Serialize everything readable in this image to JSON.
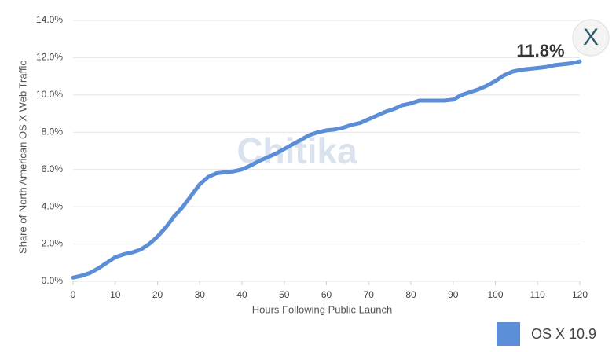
{
  "chart_data": {
    "type": "line",
    "x_label": "Hours Following Public Launch",
    "y_label": "Share of North American OS X Web Traffic",
    "annotation": "11.8%",
    "watermark": "Chitika",
    "logo": "X",
    "x": [
      0,
      2,
      4,
      6,
      8,
      10,
      12,
      14,
      16,
      18,
      20,
      22,
      24,
      26,
      28,
      30,
      32,
      34,
      36,
      38,
      40,
      42,
      44,
      46,
      48,
      50,
      52,
      54,
      56,
      58,
      60,
      62,
      64,
      66,
      68,
      70,
      72,
      74,
      76,
      78,
      80,
      82,
      84,
      86,
      88,
      90,
      92,
      94,
      96,
      98,
      100,
      102,
      104,
      106,
      108,
      110,
      112,
      114,
      116,
      118,
      120
    ],
    "series": [
      {
        "name": "OS X 10.9",
        "color": "#5b8ed6",
        "values": [
          0.2,
          0.3,
          0.45,
          0.7,
          1.0,
          1.3,
          1.45,
          1.55,
          1.7,
          2.0,
          2.4,
          2.9,
          3.5,
          4.0,
          4.6,
          5.2,
          5.6,
          5.8,
          5.85,
          5.9,
          6.0,
          6.2,
          6.45,
          6.65,
          6.85,
          7.1,
          7.35,
          7.6,
          7.85,
          8.0,
          8.1,
          8.15,
          8.25,
          8.4,
          8.5,
          8.7,
          8.9,
          9.1,
          9.25,
          9.45,
          9.55,
          9.7,
          9.7,
          9.7,
          9.7,
          9.75,
          10.0,
          10.15,
          10.3,
          10.5,
          10.75,
          11.05,
          11.25,
          11.35,
          11.4,
          11.45,
          11.5,
          11.6,
          11.65,
          11.7,
          11.8
        ]
      }
    ],
    "xlim": [
      0,
      120
    ],
    "xticks": [
      0,
      10,
      20,
      30,
      40,
      50,
      60,
      70,
      80,
      90,
      100,
      110,
      120
    ],
    "ylim": [
      0,
      14
    ],
    "yticks": [
      {
        "value": 0,
        "label": "0.0%"
      },
      {
        "value": 2,
        "label": "2.0%"
      },
      {
        "value": 4,
        "label": "4.0%"
      },
      {
        "value": 6,
        "label": "6.0%"
      },
      {
        "value": 8,
        "label": "8.0%"
      },
      {
        "value": 10,
        "label": "10.0%"
      },
      {
        "value": 12,
        "label": "12.0%"
      },
      {
        "value": 14,
        "label": "14.0%"
      }
    ],
    "grid": true
  }
}
